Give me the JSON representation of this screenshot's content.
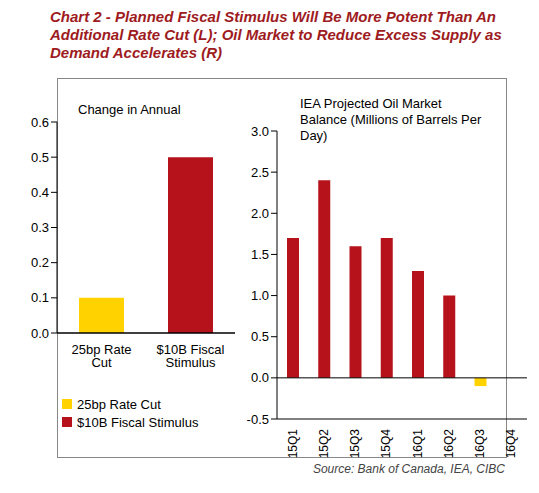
{
  "title": "Chart 2 - Planned Fiscal Stimulus Will Be More Potent Than An Additional Rate Cut (L); Oil Market to Reduce Excess Supply as Demand Accelerates (R)",
  "source": "Source: Bank of Canada, IEA, CIBC",
  "chart_data": [
    {
      "type": "bar",
      "title": "Change in Annual",
      "categories": [
        "25bp Rate Cut",
        "$10B Fiscal Stimulus"
      ],
      "values": [
        0.1,
        0.5
      ],
      "colors": [
        "#FFD200",
        "#B5121B"
      ],
      "ylim": [
        0,
        0.6
      ],
      "yticks": [
        {
          "value": 0,
          "label": "0.0"
        },
        0.1,
        0.2,
        0.3,
        0.4,
        0.5,
        0.6
      ],
      "legend": "bottom left",
      "grid": false
    },
    {
      "type": "bar",
      "title": "IEA Projected Oil Market Balance (Millions of Barrels Per Day)",
      "categories": [
        "15Q1",
        "15Q2",
        "15Q3",
        "15Q4",
        "16Q1",
        "16Q2",
        "16Q3",
        "16Q4"
      ],
      "values": [
        1.7,
        2.4,
        1.6,
        1.7,
        1.3,
        1.0,
        -0.1,
        null
      ],
      "colors": [
        "#B5121B",
        "#B5121B",
        "#B5121B",
        "#B5121B",
        "#B5121B",
        "#B5121B",
        "#FFD200",
        "#B5121B"
      ],
      "ylim": [
        -0.5,
        3.0
      ],
      "yticks": [
        -0.5,
        {
          "value": 0,
          "label": "0.0"
        },
        0.5,
        {
          "value": 1,
          "label": "1.0"
        },
        1.5,
        {
          "value": 2,
          "label": "2.0"
        },
        2.5,
        {
          "value": 3,
          "label": "3.0"
        }
      ],
      "grid": false
    }
  ]
}
